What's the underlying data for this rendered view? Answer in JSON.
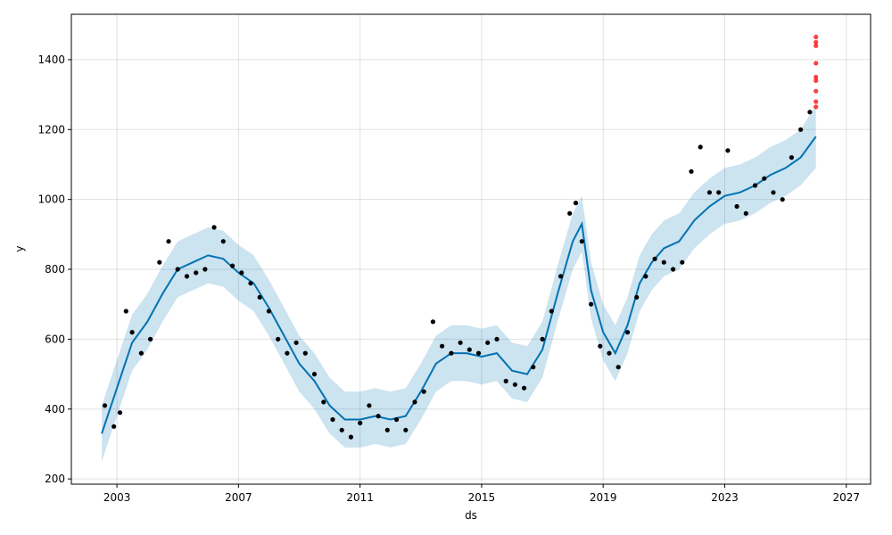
{
  "chart_data": {
    "type": "scatter",
    "title": "",
    "xlabel": "ds",
    "ylabel": "y",
    "x_ticks": [
      "2003",
      "2007",
      "2011",
      "2015",
      "2019",
      "2023",
      "2027"
    ],
    "y_ticks": [
      200,
      400,
      600,
      800,
      1000,
      1200,
      1400
    ],
    "xlim": [
      2001.5,
      2027.8
    ],
    "ylim": [
      185,
      1530
    ],
    "grid": true,
    "colors": {
      "observed": "#000000",
      "forecast_line": "#0072B2",
      "uncertainty_band": "#0072B2",
      "outliers": "#ff0000"
    },
    "series": [
      {
        "kind": "scatter",
        "role": "observed",
        "x": [
          2002.6,
          2002.9,
          2003.1,
          2003.3,
          2003.5,
          2003.8,
          2004.1,
          2004.4,
          2004.7,
          2005.0,
          2005.3,
          2005.6,
          2005.9,
          2006.2,
          2006.5,
          2006.8,
          2007.1,
          2007.4,
          2007.7,
          2008.0,
          2008.3,
          2008.6,
          2008.9,
          2009.2,
          2009.5,
          2009.8,
          2010.1,
          2010.4,
          2010.7,
          2011.0,
          2011.3,
          2011.6,
          2011.9,
          2012.2,
          2012.5,
          2012.8,
          2013.1,
          2013.4,
          2013.7,
          2014.0,
          2014.3,
          2014.6,
          2014.9,
          2015.2,
          2015.5,
          2015.8,
          2016.1,
          2016.4,
          2016.7,
          2017.0,
          2017.3,
          2017.6,
          2017.9,
          2018.1,
          2018.3,
          2018.6,
          2018.9,
          2019.2,
          2019.5,
          2019.8,
          2020.1,
          2020.4,
          2020.7,
          2021.0,
          2021.3,
          2021.6,
          2021.9,
          2022.2,
          2022.5,
          2022.8,
          2023.1,
          2023.4,
          2023.7,
          2024.0,
          2024.3,
          2024.6,
          2024.9,
          2025.2,
          2025.5,
          2025.8
        ],
        "y": [
          410,
          350,
          390,
          680,
          620,
          560,
          600,
          820,
          880,
          800,
          780,
          790,
          800,
          920,
          880,
          810,
          790,
          760,
          720,
          680,
          600,
          560,
          590,
          560,
          500,
          420,
          370,
          340,
          320,
          360,
          410,
          380,
          340,
          370,
          340,
          420,
          450,
          650,
          580,
          560,
          590,
          570,
          560,
          590,
          600,
          480,
          470,
          460,
          520,
          600,
          680,
          780,
          960,
          990,
          880,
          700,
          580,
          560,
          520,
          620,
          720,
          780,
          830,
          820,
          800,
          820,
          1080,
          1150,
          1020,
          1020,
          1140,
          980,
          960,
          1040,
          1060,
          1020,
          1000,
          1120,
          1200,
          1250
        ]
      },
      {
        "kind": "line",
        "role": "forecast",
        "x": [
          2002.5,
          2003.0,
          2003.5,
          2004.0,
          2004.5,
          2005.0,
          2005.5,
          2006.0,
          2006.5,
          2007.0,
          2007.5,
          2008.0,
          2008.5,
          2009.0,
          2009.5,
          2010.0,
          2010.5,
          2011.0,
          2011.5,
          2012.0,
          2012.5,
          2013.0,
          2013.5,
          2014.0,
          2014.5,
          2015.0,
          2015.5,
          2016.0,
          2016.5,
          2017.0,
          2017.5,
          2018.0,
          2018.3,
          2018.6,
          2019.0,
          2019.4,
          2019.8,
          2020.2,
          2020.6,
          2021.0,
          2021.5,
          2022.0,
          2022.5,
          2023.0,
          2023.5,
          2024.0,
          2024.5,
          2025.0,
          2025.5,
          2026.0
        ],
        "y": [
          330,
          460,
          590,
          650,
          730,
          800,
          820,
          840,
          830,
          790,
          760,
          690,
          610,
          530,
          480,
          410,
          370,
          370,
          380,
          370,
          380,
          450,
          530,
          560,
          560,
          550,
          560,
          510,
          500,
          570,
          730,
          880,
          930,
          740,
          620,
          560,
          640,
          760,
          820,
          860,
          880,
          940,
          980,
          1010,
          1020,
          1040,
          1070,
          1090,
          1120,
          1180
        ]
      },
      {
        "kind": "band",
        "role": "uncertainty",
        "x": [
          2002.5,
          2003.0,
          2003.5,
          2004.0,
          2004.5,
          2005.0,
          2005.5,
          2006.0,
          2006.5,
          2007.0,
          2007.5,
          2008.0,
          2008.5,
          2009.0,
          2009.5,
          2010.0,
          2010.5,
          2011.0,
          2011.5,
          2012.0,
          2012.5,
          2013.0,
          2013.5,
          2014.0,
          2014.5,
          2015.0,
          2015.5,
          2016.0,
          2016.5,
          2017.0,
          2017.5,
          2018.0,
          2018.3,
          2018.6,
          2019.0,
          2019.4,
          2019.8,
          2020.2,
          2020.6,
          2021.0,
          2021.5,
          2022.0,
          2022.5,
          2023.0,
          2023.5,
          2024.0,
          2024.5,
          2025.0,
          2025.5,
          2026.0
        ],
        "lower": [
          250,
          380,
          510,
          570,
          650,
          720,
          740,
          760,
          750,
          710,
          680,
          610,
          530,
          450,
          400,
          330,
          290,
          290,
          300,
          290,
          300,
          370,
          450,
          480,
          480,
          470,
          480,
          430,
          420,
          490,
          650,
          800,
          850,
          660,
          540,
          480,
          560,
          680,
          740,
          780,
          800,
          860,
          900,
          930,
          940,
          960,
          990,
          1010,
          1040,
          1090
        ],
        "upper": [
          410,
          540,
          670,
          730,
          810,
          880,
          900,
          920,
          910,
          870,
          840,
          770,
          690,
          610,
          560,
          490,
          450,
          450,
          460,
          450,
          460,
          530,
          610,
          640,
          640,
          630,
          640,
          590,
          580,
          650,
          810,
          960,
          1010,
          820,
          700,
          640,
          720,
          840,
          900,
          940,
          960,
          1020,
          1060,
          1090,
          1100,
          1120,
          1150,
          1170,
          1200,
          1270
        ]
      },
      {
        "kind": "scatter",
        "role": "outliers",
        "x": [
          2026.0,
          2026.0,
          2026.0,
          2026.0,
          2026.0,
          2026.0,
          2026.0,
          2026.0,
          2026.0
        ],
        "y": [
          1465,
          1450,
          1440,
          1390,
          1350,
          1340,
          1310,
          1280,
          1265
        ]
      }
    ]
  }
}
